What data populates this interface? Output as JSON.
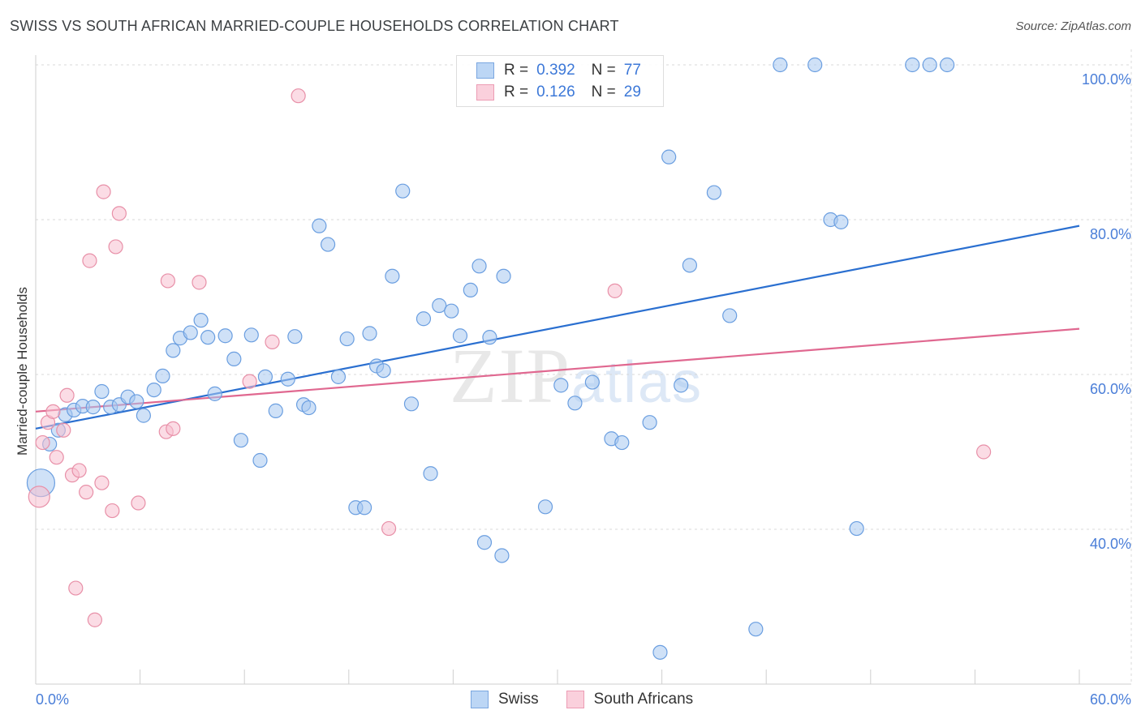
{
  "title": "SWISS VS SOUTH AFRICAN MARRIED-COUPLE HOUSEHOLDS CORRELATION CHART",
  "source": "Source: ZipAtlas.com",
  "watermark": {
    "zip": "ZIP",
    "atlas": "atlas"
  },
  "legend": {
    "rows": [
      {
        "r_label": "R =",
        "r_value": "0.392",
        "n_label": "N =",
        "n_value": "77"
      },
      {
        "r_label": "R =",
        "r_value": "0.126",
        "n_label": "N =",
        "n_value": "29"
      }
    ]
  },
  "bottom_legend": {
    "swiss": "Swiss",
    "south_africans": "South Africans"
  },
  "colors": {
    "swiss_fill": "#a8c8f0",
    "swiss_stroke": "#6a9ee0",
    "swiss_line": "#2a6fd0",
    "sa_fill": "#f8c0d0",
    "sa_stroke": "#e890a8",
    "sa_line": "#e06890",
    "tick": "#4a7ed8",
    "grid": "#d8d8d8"
  },
  "chart_data": {
    "type": "scatter",
    "title": "SWISS VS SOUTH AFRICAN MARRIED-COUPLE HOUSEHOLDS CORRELATION CHART",
    "xlabel": "",
    "ylabel": "Married-couple Households",
    "xlim": [
      0,
      60
    ],
    "ylim": [
      20,
      102
    ],
    "x_tick_labels": [
      "0.0%",
      "60.0%"
    ],
    "y_ticks": [
      40,
      60,
      80,
      100
    ],
    "y_tick_labels": [
      "40.0%",
      "60.0%",
      "80.0%",
      "100.0%"
    ],
    "series": [
      {
        "name": "Swiss",
        "R": 0.392,
        "N": 77,
        "trend": [
          [
            0,
            53.0
          ],
          [
            60,
            79.2
          ]
        ],
        "points": [
          [
            0.3,
            46.0,
            3
          ],
          [
            0.8,
            51.0,
            1
          ],
          [
            1.3,
            52.8,
            1
          ],
          [
            1.7,
            54.8,
            1
          ],
          [
            2.2,
            55.4,
            1
          ],
          [
            2.7,
            55.9,
            1
          ],
          [
            3.3,
            55.8,
            1
          ],
          [
            3.8,
            57.8,
            1
          ],
          [
            4.3,
            55.8,
            1
          ],
          [
            4.8,
            56.1,
            1
          ],
          [
            5.3,
            57.1,
            1
          ],
          [
            5.8,
            56.5,
            1
          ],
          [
            6.2,
            54.7,
            1
          ],
          [
            6.8,
            58.0,
            1
          ],
          [
            7.3,
            59.8,
            1
          ],
          [
            7.9,
            63.1,
            1
          ],
          [
            8.3,
            64.7,
            1
          ],
          [
            8.9,
            65.4,
            1
          ],
          [
            9.5,
            67.0,
            1
          ],
          [
            9.9,
            64.8,
            1
          ],
          [
            10.3,
            57.5,
            1
          ],
          [
            10.9,
            65.0,
            1
          ],
          [
            11.4,
            62.0,
            1
          ],
          [
            11.8,
            51.5,
            1
          ],
          [
            12.4,
            65.1,
            1
          ],
          [
            12.9,
            48.9,
            1
          ],
          [
            13.2,
            59.7,
            1
          ],
          [
            13.8,
            55.3,
            1
          ],
          [
            14.5,
            59.4,
            1
          ],
          [
            14.9,
            64.9,
            1
          ],
          [
            15.4,
            56.1,
            1
          ],
          [
            15.7,
            55.7,
            1
          ],
          [
            16.3,
            79.2,
            1
          ],
          [
            16.8,
            76.8,
            1
          ],
          [
            17.4,
            59.7,
            1
          ],
          [
            17.9,
            64.6,
            1
          ],
          [
            18.4,
            42.8,
            1
          ],
          [
            18.9,
            42.8,
            1
          ],
          [
            19.2,
            65.3,
            1
          ],
          [
            19.6,
            61.1,
            1
          ],
          [
            20.0,
            60.5,
            1
          ],
          [
            20.5,
            72.7,
            1
          ],
          [
            21.1,
            83.7,
            1
          ],
          [
            21.6,
            56.2,
            1
          ],
          [
            22.3,
            67.2,
            1
          ],
          [
            22.7,
            47.2,
            1
          ],
          [
            23.2,
            68.9,
            1
          ],
          [
            23.9,
            68.2,
            1
          ],
          [
            24.4,
            65.0,
            1
          ],
          [
            25.0,
            70.9,
            1
          ],
          [
            25.5,
            74.0,
            1
          ],
          [
            25.8,
            38.3,
            1
          ],
          [
            26.1,
            64.8,
            1
          ],
          [
            26.8,
            36.6,
            1
          ],
          [
            26.9,
            72.7,
            1
          ],
          [
            29.3,
            42.9,
            1
          ],
          [
            30.2,
            58.6,
            1
          ],
          [
            31.0,
            56.3,
            1
          ],
          [
            32.0,
            59.0,
            1
          ],
          [
            33.1,
            51.7,
            1
          ],
          [
            33.7,
            51.2,
            1
          ],
          [
            35.3,
            53.8,
            1
          ],
          [
            35.9,
            24.1,
            1
          ],
          [
            36.4,
            88.1,
            1
          ],
          [
            37.1,
            58.6,
            1
          ],
          [
            37.6,
            74.1,
            1
          ],
          [
            39.0,
            83.5,
            1
          ],
          [
            39.9,
            67.6,
            1
          ],
          [
            41.4,
            27.1,
            1
          ],
          [
            42.8,
            100.0,
            1
          ],
          [
            44.8,
            100.0,
            1
          ],
          [
            45.7,
            80.0,
            1
          ],
          [
            46.3,
            79.7,
            1
          ],
          [
            47.2,
            40.1,
            1
          ],
          [
            50.4,
            100.0,
            1
          ],
          [
            51.4,
            100.0,
            1
          ],
          [
            52.4,
            100.0,
            1
          ]
        ]
      },
      {
        "name": "South Africans",
        "R": 0.126,
        "N": 29,
        "trend": [
          [
            0,
            55.2
          ],
          [
            60,
            65.9
          ]
        ],
        "points": [
          [
            0.2,
            44.2,
            2
          ],
          [
            0.4,
            51.2,
            1
          ],
          [
            0.7,
            53.8,
            1
          ],
          [
            1.0,
            55.2,
            1
          ],
          [
            1.2,
            49.3,
            1
          ],
          [
            1.6,
            52.8,
            1
          ],
          [
            1.8,
            57.3,
            1
          ],
          [
            2.1,
            47.0,
            1
          ],
          [
            2.3,
            32.4,
            1
          ],
          [
            2.5,
            47.6,
            1
          ],
          [
            2.9,
            44.8,
            1
          ],
          [
            3.1,
            74.7,
            1
          ],
          [
            3.4,
            28.3,
            1
          ],
          [
            3.8,
            46.0,
            1
          ],
          [
            3.9,
            83.6,
            1
          ],
          [
            4.4,
            42.4,
            1
          ],
          [
            4.6,
            76.5,
            1
          ],
          [
            4.8,
            80.8,
            1
          ],
          [
            5.9,
            43.4,
            1
          ],
          [
            7.5,
            52.6,
            1
          ],
          [
            7.6,
            72.1,
            1
          ],
          [
            7.9,
            53.0,
            1
          ],
          [
            9.4,
            71.9,
            1
          ],
          [
            12.3,
            59.1,
            1
          ],
          [
            13.6,
            64.2,
            1
          ],
          [
            15.1,
            96.0,
            1
          ],
          [
            20.3,
            40.1,
            1
          ],
          [
            33.3,
            70.8,
            1
          ],
          [
            54.5,
            50.0,
            1
          ]
        ]
      }
    ]
  }
}
